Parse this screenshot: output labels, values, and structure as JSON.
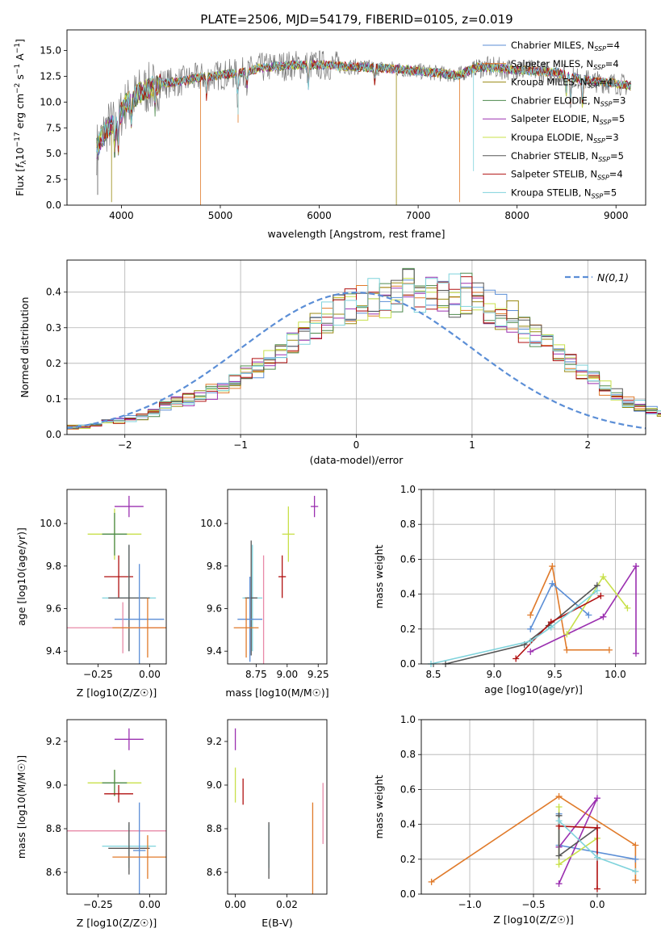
{
  "figure_title": "PLATE=2506, MJD=54179, FIBERID=0105, z=0.019",
  "colors": {
    "Chabrier MILES": "#5b8ed6",
    "Salpeter MILES": "#e07a2a",
    "Kroupa MILES": "#9a8a12",
    "Chabrier ELODIE": "#4d8a4d",
    "Salpeter ELODIE": "#9b30b0",
    "Kroupa ELODIE": "#c8e04a",
    "Chabrier STELIB": "#555555",
    "Salpeter STELIB": "#b01010",
    "Kroupa STELIB": "#7fd3dc",
    "pink": "#e88aa8",
    "grid": "#b0b0b0",
    "gaussian": "#5b8ed6"
  },
  "chart_data": [
    {
      "id": "spectrum",
      "type": "line",
      "title": "PLATE=2506, MJD=54179, FIBERID=0105, z=0.019",
      "xlabel": "wavelength [Angstrom, rest frame]",
      "ylabel": "Flux [f_λ 10^-17 erg cm^-2 s^-1 A^-1]",
      "xlim": [
        3450,
        9300
      ],
      "ylim": [
        0,
        17
      ],
      "xticks": [
        "4000",
        "5000",
        "6000",
        "7000",
        "8000",
        "9000"
      ],
      "yticks": [
        "0.0",
        "2.5",
        "5.0",
        "7.5",
        "10.0",
        "12.5",
        "15.0"
      ],
      "grid": false,
      "legend_position": "top-right",
      "continuum": [
        [
          3750,
          5.5
        ],
        [
          3850,
          7.5
        ],
        [
          3950,
          8.2
        ],
        [
          4050,
          9.8
        ],
        [
          4200,
          11.0
        ],
        [
          4400,
          11.8
        ],
        [
          4600,
          12.0
        ],
        [
          4800,
          12.4
        ],
        [
          5000,
          12.6
        ],
        [
          5200,
          12.8
        ],
        [
          5400,
          13.3
        ],
        [
          5600,
          13.5
        ],
        [
          5800,
          13.6
        ],
        [
          6000,
          13.6
        ],
        [
          6200,
          13.5
        ],
        [
          6400,
          13.4
        ],
        [
          6600,
          13.3
        ],
        [
          6800,
          13.2
        ],
        [
          7000,
          13.0
        ],
        [
          7200,
          12.8
        ],
        [
          7400,
          12.6
        ],
        [
          7600,
          13.4
        ],
        [
          7800,
          13.3
        ],
        [
          8000,
          13.1
        ],
        [
          8200,
          13.0
        ],
        [
          8400,
          12.9
        ],
        [
          8600,
          12.3
        ],
        [
          8800,
          12.0
        ],
        [
          9000,
          11.8
        ],
        [
          9200,
          11.5
        ]
      ],
      "series": [
        {
          "name": "Chabrier MILES",
          "n_ssp": "4"
        },
        {
          "name": "Salpeter MILES",
          "n_ssp": "4"
        },
        {
          "name": "Kroupa MILES",
          "n_ssp": "4"
        },
        {
          "name": "Chabrier ELODIE",
          "n_ssp": "3"
        },
        {
          "name": "Salpeter ELODIE",
          "n_ssp": "5"
        },
        {
          "name": "Kroupa ELODIE",
          "n_ssp": "3"
        },
        {
          "name": "Chabrier STELIB",
          "n_ssp": "5"
        },
        {
          "name": "Salpeter STELIB",
          "n_ssp": "4"
        },
        {
          "name": "Kroupa STELIB",
          "n_ssp": "5"
        }
      ]
    },
    {
      "id": "residuals",
      "type": "histogram",
      "xlabel": "(data-model)/error",
      "ylabel": "Normed distribution",
      "xlim": [
        -2.5,
        2.5
      ],
      "ylim": [
        0,
        0.49
      ],
      "xticks": [
        "−2",
        "−1",
        "0",
        "1",
        "2"
      ],
      "yticks": [
        "0.0",
        "0.1",
        "0.2",
        "0.3",
        "0.4"
      ],
      "grid": true,
      "legend": "N(0,1)",
      "bin_width": 0.1,
      "bin_start": -2.5,
      "mean_values": [
        0.02,
        0.025,
        0.03,
        0.035,
        0.04,
        0.045,
        0.05,
        0.06,
        0.08,
        0.09,
        0.1,
        0.11,
        0.12,
        0.13,
        0.15,
        0.17,
        0.19,
        0.21,
        0.24,
        0.26,
        0.28,
        0.3,
        0.33,
        0.35,
        0.36,
        0.37,
        0.38,
        0.39,
        0.4,
        0.41,
        0.4,
        0.41,
        0.4,
        0.39,
        0.4,
        0.38,
        0.36,
        0.34,
        0.33,
        0.3,
        0.27,
        0.25,
        0.22,
        0.2,
        0.18,
        0.16,
        0.13,
        0.11,
        0.09,
        0.08,
        0.07,
        0.06,
        0.05,
        0.045,
        0.04,
        0.035,
        0.03,
        0.03,
        0.025,
        0.02
      ],
      "gaussian": {
        "mu": 0,
        "sigma": 1
      }
    },
    {
      "id": "age_vs_Z",
      "type": "errorbar",
      "xlabel": "Z [log10(Z/Z☉)]",
      "ylabel": "age  [log10(age/yr)]",
      "xlim": [
        -0.4,
        0.08
      ],
      "ylim": [
        9.34,
        10.16
      ],
      "xticks": [
        "−0.25",
        "0.00"
      ],
      "xtick_values": [
        -0.25,
        0.0
      ],
      "yticks": [
        "9.4",
        "9.6",
        "9.8",
        "10.0"
      ],
      "ytick_values": [
        9.4,
        9.6,
        9.8,
        10.0
      ],
      "points": [
        {
          "series": "Salpeter ELODIE",
          "x": -0.1,
          "y": 10.08,
          "xerr": 0.07,
          "yerr": 0.05
        },
        {
          "series": "Kroupa ELODIE",
          "x": -0.17,
          "y": 9.95,
          "xerr": 0.13,
          "yerr": 0.12
        },
        {
          "series": "Chabrier ELODIE",
          "x": -0.17,
          "y": 9.95,
          "xerr": 0.06,
          "yerr": 0.1
        },
        {
          "series": "Salpeter STELIB",
          "x": -0.15,
          "y": 9.75,
          "xerr": 0.07,
          "yerr": 0.1
        },
        {
          "series": "Kroupa STELIB",
          "x": -0.1,
          "y": 9.65,
          "xerr": 0.13,
          "yerr": 0.25
        },
        {
          "series": "Chabrier STELIB",
          "x": -0.1,
          "y": 9.65,
          "xerr": 0.1,
          "yerr": 0.25
        },
        {
          "series": "Chabrier MILES",
          "x": -0.05,
          "y": 9.55,
          "xerr": 0.12,
          "yerr": 0.26
        },
        {
          "series": "pink",
          "x": -0.13,
          "y": 9.51,
          "xerr": 0.27,
          "yerr": 0.12
        },
        {
          "series": "Salpeter MILES",
          "x": -0.01,
          "y": 9.51,
          "xerr": 0.17,
          "yerr": 0.14
        }
      ]
    },
    {
      "id": "age_vs_mass",
      "type": "errorbar",
      "xlabel": "mass [log10(M/M☉)]",
      "ylabel": "",
      "xlim": [
        8.52,
        9.32
      ],
      "ylim": [
        9.34,
        10.16
      ],
      "xticks": [
        "8.75",
        "9.00",
        "9.25"
      ],
      "xtick_values": [
        8.75,
        9.0,
        9.25
      ],
      "yticks": [
        "9.4",
        "9.6",
        "9.8",
        "10.0"
      ],
      "ytick_values": [
        9.4,
        9.6,
        9.8,
        10.0
      ],
      "points": [
        {
          "series": "Salpeter ELODIE",
          "x": 9.22,
          "y": 10.08,
          "xerr": 0.03,
          "yerr": 0.05
        },
        {
          "series": "Kroupa ELODIE",
          "x": 9.01,
          "y": 9.95,
          "xerr": 0.05,
          "yerr": 0.13
        },
        {
          "series": "Salpeter STELIB",
          "x": 8.96,
          "y": 9.75,
          "xerr": 0.03,
          "yerr": 0.1
        },
        {
          "series": "pink",
          "x": 8.81,
          "y": 9.51,
          "xerr": 0.0,
          "yerr": 0.34
        },
        {
          "series": "Kroupa STELIB",
          "x": 8.72,
          "y": 9.65,
          "xerr": 0.08,
          "yerr": 0.25
        },
        {
          "series": "Chabrier STELIB",
          "x": 8.71,
          "y": 9.65,
          "xerr": 0.05,
          "yerr": 0.27
        },
        {
          "series": "Chabrier MILES",
          "x": 8.7,
          "y": 9.55,
          "xerr": 0.1,
          "yerr": 0.2
        },
        {
          "series": "Salpeter MILES",
          "x": 8.67,
          "y": 9.51,
          "xerr": 0.1,
          "yerr": 0.14
        }
      ]
    },
    {
      "id": "weight_vs_age",
      "type": "line",
      "xlabel": "age  [log10(age/yr)]",
      "ylabel": "mass weight",
      "xlim": [
        8.4,
        10.25
      ],
      "ylim": [
        0,
        1.0
      ],
      "xticks": [
        "8.5",
        "9.0",
        "9.5",
        "10.0"
      ],
      "xtick_values": [
        8.5,
        9.0,
        9.5,
        10.0
      ],
      "yticks": [
        "0.0",
        "0.2",
        "0.4",
        "0.6",
        "0.8",
        "1.0"
      ],
      "ytick_values": [
        0,
        0.2,
        0.4,
        0.6,
        0.8,
        1.0
      ],
      "grid": true,
      "series": [
        {
          "name": "Salpeter MILES",
          "x": [
            9.3,
            9.48,
            9.6,
            9.95
          ],
          "y": [
            0.28,
            0.56,
            0.08,
            0.08
          ]
        },
        {
          "name": "Chabrier MILES",
          "x": [
            9.3,
            9.48,
            9.78
          ],
          "y": [
            0.2,
            0.46,
            0.28
          ]
        },
        {
          "name": "Salpeter ELODIE",
          "x": [
            9.3,
            9.9,
            10.17,
            10.17
          ],
          "y": [
            0.07,
            0.27,
            0.56,
            0.06
          ]
        },
        {
          "name": "Kroupa ELODIE",
          "x": [
            9.6,
            9.9,
            10.1
          ],
          "y": [
            0.17,
            0.5,
            0.32
          ]
        },
        {
          "name": "Chabrier STELIB",
          "x": [
            8.6,
            9.25,
            9.45,
            9.85
          ],
          "y": [
            0.0,
            0.11,
            0.22,
            0.45
          ]
        },
        {
          "name": "Salpeter STELIB",
          "x": [
            9.18,
            9.47,
            9.88
          ],
          "y": [
            0.03,
            0.24,
            0.39
          ]
        },
        {
          "name": "Kroupa STELIB",
          "x": [
            8.48,
            9.3,
            9.47,
            9.85
          ],
          "y": [
            0.0,
            0.13,
            0.21,
            0.42
          ]
        }
      ]
    },
    {
      "id": "mass_vs_Z",
      "type": "errorbar",
      "xlabel": "Z [log10(Z/Z☉)]",
      "ylabel": "mass [log10(M/M☉)]",
      "xlim": [
        -0.4,
        0.08
      ],
      "ylim": [
        8.5,
        9.3
      ],
      "xticks": [
        "−0.25",
        "0.00"
      ],
      "xtick_values": [
        -0.25,
        0.0
      ],
      "yticks": [
        "8.6",
        "8.8",
        "9.0",
        "9.2"
      ],
      "ytick_values": [
        8.6,
        8.8,
        9.0,
        9.2
      ],
      "points": [
        {
          "series": "Salpeter ELODIE",
          "x": -0.1,
          "y": 9.21,
          "xerr": 0.07,
          "yerr": 0.05
        },
        {
          "series": "Kroupa ELODIE",
          "x": -0.17,
          "y": 9.01,
          "xerr": 0.13,
          "yerr": 0.06
        },
        {
          "series": "Chabrier ELODIE",
          "x": -0.17,
          "y": 9.01,
          "xerr": 0.06,
          "yerr": 0.06
        },
        {
          "series": "Salpeter STELIB",
          "x": -0.15,
          "y": 8.96,
          "xerr": 0.07,
          "yerr": 0.04
        },
        {
          "series": "pink",
          "x": -0.13,
          "y": 8.79,
          "xerr": 0.27,
          "yerr": 0.0
        },
        {
          "series": "Kroupa STELIB",
          "x": -0.1,
          "y": 8.72,
          "xerr": 0.13,
          "yerr": 0.1
        },
        {
          "series": "Chabrier STELIB",
          "x": -0.1,
          "y": 8.71,
          "xerr": 0.1,
          "yerr": 0.12
        },
        {
          "series": "Chabrier MILES",
          "x": -0.05,
          "y": 8.7,
          "xerr": 0.03,
          "yerr": 0.22
        },
        {
          "series": "Salpeter MILES",
          "x": -0.01,
          "y": 8.67,
          "xerr": 0.17,
          "yerr": 0.1
        }
      ]
    },
    {
      "id": "mass_vs_ebv",
      "type": "errorbar",
      "xlabel": "E(B-V)",
      "ylabel": "",
      "xlim": [
        -0.003,
        0.0355
      ],
      "ylim": [
        8.5,
        9.3
      ],
      "xticks": [
        "0.00",
        "0.02"
      ],
      "xtick_values": [
        0.0,
        0.02
      ],
      "yticks": [
        "8.6",
        "8.8",
        "9.0",
        "9.2"
      ],
      "ytick_values": [
        8.6,
        8.8,
        9.0,
        9.2
      ],
      "points": [
        {
          "series": "Salpeter ELODIE",
          "x": 0.0,
          "y": 9.21,
          "xerr": 0,
          "yerr": 0.05
        },
        {
          "series": "Kroupa ELODIE",
          "x": 0.0,
          "y": 9.0,
          "xerr": 0,
          "yerr": 0.08
        },
        {
          "series": "Salpeter STELIB",
          "x": 0.003,
          "y": 8.97,
          "xerr": 0,
          "yerr": 0.06
        },
        {
          "series": "Kroupa STELIB",
          "x": 0.013,
          "y": 8.72,
          "xerr": 0,
          "yerr": 0.1
        },
        {
          "series": "Chabrier STELIB",
          "x": 0.013,
          "y": 8.7,
          "xerr": 0,
          "yerr": 0.13
        },
        {
          "series": "Salpeter MILES",
          "x": 0.03,
          "y": 8.7,
          "xerr": 0,
          "yerr": 0.22
        },
        {
          "series": "pink",
          "x": 0.034,
          "y": 8.87,
          "xerr": 0,
          "yerr": 0.14
        }
      ]
    },
    {
      "id": "weight_vs_Z",
      "type": "line",
      "xlabel": "Z [log10(Z/Z☉)]",
      "ylabel": "mass weight",
      "xlim": [
        -1.38,
        0.38
      ],
      "ylim": [
        0,
        1.0
      ],
      "xticks": [
        "−1.0",
        "−0.5",
        "0.0"
      ],
      "xtick_values": [
        -1.0,
        -0.5,
        0.0
      ],
      "yticks": [
        "0.0",
        "0.2",
        "0.4",
        "0.6",
        "0.8",
        "1.0"
      ],
      "ytick_values": [
        0,
        0.2,
        0.4,
        0.6,
        0.8,
        1.0
      ],
      "grid": true,
      "series": [
        {
          "name": "Salpeter MILES",
          "x": [
            -1.3,
            -0.3,
            0.3,
            0.3
          ],
          "y": [
            0.07,
            0.56,
            0.28,
            0.08
          ]
        },
        {
          "name": "Chabrier MILES",
          "x": [
            -0.3,
            -0.3,
            0.3
          ],
          "y": [
            0.46,
            0.28,
            0.2
          ]
        },
        {
          "name": "Salpeter ELODIE",
          "x": [
            -0.3,
            0.0,
            -0.3
          ],
          "y": [
            0.06,
            0.55,
            0.27
          ]
        },
        {
          "name": "Kroupa ELODIE",
          "x": [
            -0.3,
            -0.3,
            0.0
          ],
          "y": [
            0.5,
            0.17,
            0.32
          ]
        },
        {
          "name": "Chabrier STELIB",
          "x": [
            -0.3,
            -0.3,
            0.0
          ],
          "y": [
            0.45,
            0.22,
            0.38
          ]
        },
        {
          "name": "Salpeter STELIB",
          "x": [
            -0.3,
            0.0,
            0.0
          ],
          "y": [
            0.39,
            0.38,
            0.03
          ]
        },
        {
          "name": "Kroupa STELIB",
          "x": [
            -0.3,
            0.0,
            0.3
          ],
          "y": [
            0.42,
            0.21,
            0.13
          ]
        }
      ]
    }
  ]
}
